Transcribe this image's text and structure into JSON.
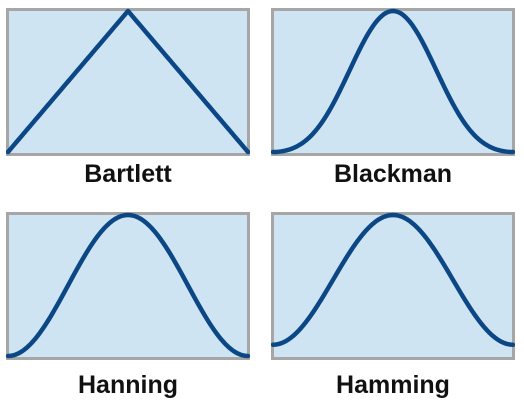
{
  "colors": {
    "plot_background": "#cfe4f3",
    "plot_border": "#a6a6a6",
    "curve": "#0b4785"
  },
  "windows": [
    {
      "label": "Bartlett",
      "function": "bartlett"
    },
    {
      "label": "Blackman",
      "function": "blackman"
    },
    {
      "label": "Hanning",
      "function": "hanning"
    },
    {
      "label": "Hamming",
      "function": "hamming"
    }
  ]
}
